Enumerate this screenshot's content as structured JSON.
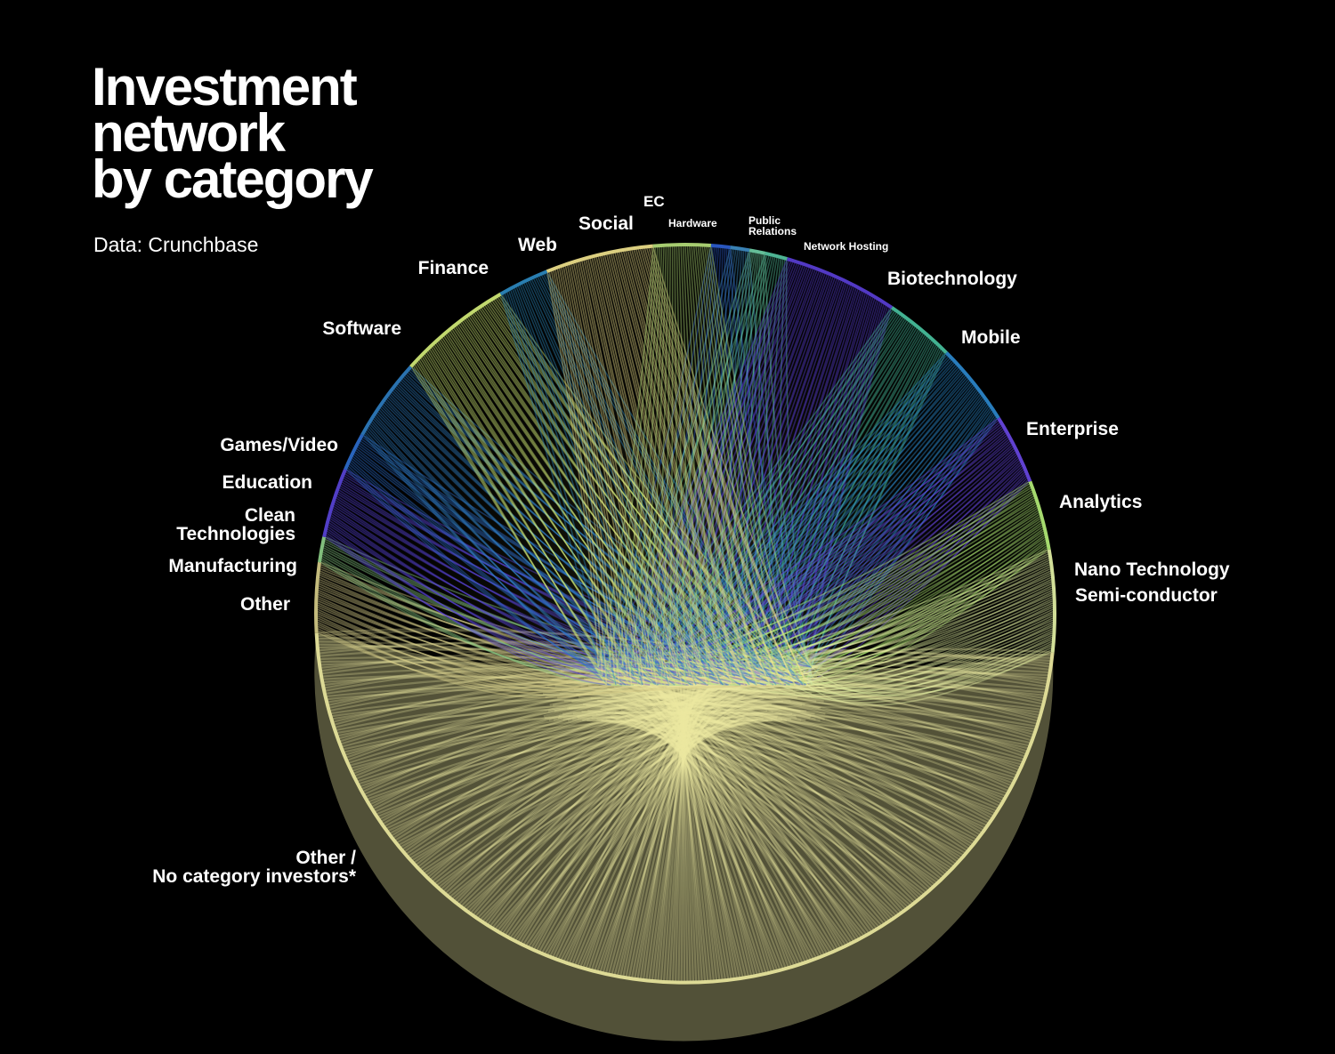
{
  "title_lines": [
    "Investment",
    "network",
    "by category"
  ],
  "source": "Data: Crunchbase",
  "categories": [
    {
      "lines": [
        "EC"
      ],
      "color": "#2d5fd4"
    },
    {
      "lines": [
        "Hardware"
      ],
      "color": "#3f8fc8"
    },
    {
      "lines": [
        "Public",
        "Relations"
      ],
      "color": "#6fd3a8"
    },
    {
      "lines": [
        "Network Hosting"
      ],
      "color": "#57c8a4"
    },
    {
      "lines": [
        "Biotechnology"
      ],
      "color": "#5b3fd9"
    },
    {
      "lines": [
        "Mobile"
      ],
      "color": "#49c4a1"
    },
    {
      "lines": [
        "Enterprise"
      ],
      "color": "#2c8ad0"
    },
    {
      "lines": [
        "Analytics"
      ],
      "color": "#6a48e8"
    },
    {
      "lines": [
        "Nano Technology"
      ],
      "color": "#b7f27a"
    },
    {
      "lines": [
        "Semi-conductor"
      ],
      "color": "#e9f7a8"
    },
    {
      "lines": [
        "Other /",
        "No category investors*"
      ],
      "color": "#ece9a0"
    },
    {
      "lines": [
        "Other"
      ],
      "color": "#d9cf8a"
    },
    {
      "lines": [
        "Manufacturing"
      ],
      "color": "#8fd38a"
    },
    {
      "lines": [
        "Clean",
        "Technologies"
      ],
      "color": "#5a45dc"
    },
    {
      "lines": [
        "Education"
      ],
      "color": "#2d6fd0"
    },
    {
      "lines": [
        "Games/Video"
      ],
      "color": "#2f7ec3"
    },
    {
      "lines": [
        "Software"
      ],
      "color": "#d6f07a"
    },
    {
      "lines": [
        "Finance"
      ],
      "color": "#2d8cc4"
    },
    {
      "lines": [
        "Web"
      ],
      "color": "#f4e58e"
    },
    {
      "lines": [
        "Social"
      ],
      "color": "#b8e27c"
    }
  ]
}
